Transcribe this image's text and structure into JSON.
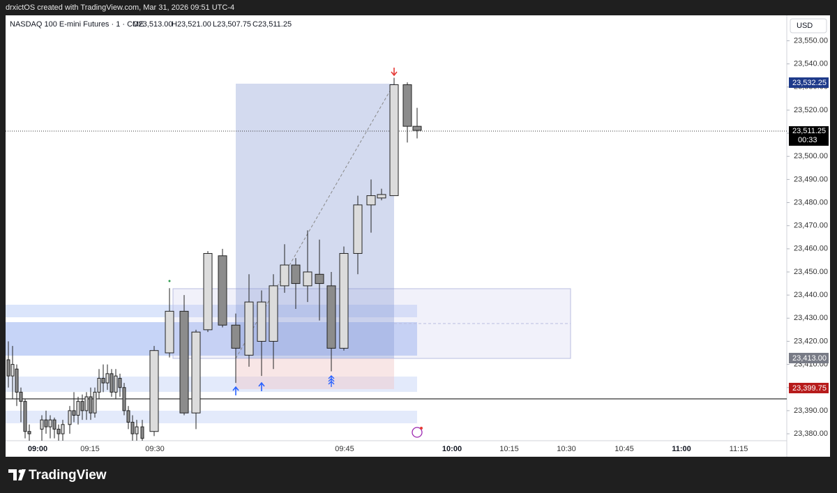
{
  "header": {
    "text": "drxictOS created with TradingView.com, Mar 31, 2026 09:51 UTC-4"
  },
  "legend": {
    "symbol": "NASDAQ 100 E-mini Futures · 1 · CME",
    "open": "O23,513.00",
    "high": "H23,521.00",
    "low": "L23,507.75",
    "close": "C23,511.25"
  },
  "currency": "USD",
  "price_labels": {
    "upper": "23,532.25",
    "last": "23,511.25",
    "countdown": "00:33",
    "mid": "23,413.00",
    "lower": "23,399.75"
  },
  "footer": {
    "brand": "TradingView"
  },
  "chart_data": {
    "type": "candlestick",
    "categories": [
      null,
      null,
      null,
      null,
      null,
      null,
      null,
      null,
      null,
      null,
      null,
      null,
      null,
      null,
      null,
      null,
      null,
      null,
      null,
      null,
      null,
      null,
      null,
      null,
      null,
      null,
      null,
      null,
      null,
      null,
      null,
      null,
      null,
      null,
      null,
      null,
      null,
      null,
      null,
      null,
      null,
      null,
      null,
      null,
      null,
      null,
      null,
      null,
      null,
      null,
      null,
      null
    ],
    "open": [
      23412,
      23405,
      23408,
      23398,
      23394,
      23381,
      23382,
      23386,
      23383,
      23386,
      23382,
      23380,
      23384,
      23390,
      23388,
      23394,
      23390,
      23396,
      23389,
      23398,
      23404,
      23402,
      23406,
      23398,
      23404,
      23400,
      23390,
      23385,
      23380,
      23383,
      23381,
      23415,
      23433,
      23389,
      23425,
      23457,
      23427,
      23414,
      23420,
      23420,
      23444,
      23453,
      23444,
      23449,
      23444,
      23417,
      23458,
      23479,
      23482,
      23483,
      23531,
      23513
    ],
    "high": [
      23420,
      23418,
      23410,
      23400,
      23395,
      23384,
      23388,
      23390,
      23388,
      23387,
      23384,
      23386,
      23392,
      23398,
      23396,
      23397,
      23398,
      23400,
      23400,
      23408,
      23410,
      23410,
      23408,
      23408,
      23406,
      23402,
      23392,
      23388,
      23386,
      23386,
      23418,
      23443,
      23440,
      23425,
      23459,
      23460,
      23432,
      23449,
      23442,
      23449,
      23462,
      23456,
      23468,
      23464,
      23450,
      23461,
      23483,
      23490,
      23486,
      23534,
      23532,
      23521
    ],
    "low": [
      23400,
      23395,
      23392,
      23385,
      23378,
      23376,
      23377,
      23380,
      23378,
      23378,
      23375,
      23376,
      23380,
      23385,
      23384,
      23386,
      23386,
      23386,
      23387,
      23395,
      23398,
      23399,
      23396,
      23395,
      23396,
      23388,
      23382,
      23377,
      23376,
      23376,
      23379,
      23413,
      23388,
      23382,
      23424,
      23426,
      23402,
      23409,
      23405,
      23408,
      23441,
      23434,
      23437,
      23429,
      23407,
      23416,
      23449,
      23467,
      23481,
      23483,
      23506,
      23507.75
    ],
    "close": [
      23405,
      23410,
      23398,
      23394,
      23381,
      23380,
      23386,
      23383,
      23386,
      23382,
      23380,
      23384,
      23390,
      23388,
      23394,
      23390,
      23396,
      23389,
      23398,
      23404,
      23402,
      23406,
      23398,
      23405,
      23400,
      23390,
      23385,
      23380,
      23383,
      23378,
      23416,
      23433,
      23389,
      23424,
      23458,
      23427,
      23417,
      23437,
      23437,
      23444,
      23453,
      23445,
      23450,
      23445,
      23417,
      23458,
      23479,
      23483,
      23483.5,
      23531,
      23513,
      23511.25
    ],
    "up_color": "#dcdcdc",
    "down_color": "#8c8c8c",
    "ylim": [
      23377,
      23561
    ],
    "yticks": [
      {
        "value": 23380,
        "label": "23,380.00"
      },
      {
        "value": 23390,
        "label": "23,390.00"
      },
      {
        "value": 23400,
        "label": "23,400.00"
      },
      {
        "value": 23410,
        "label": "23,410.00"
      },
      {
        "value": 23420,
        "label": "23,420.00"
      },
      {
        "value": 23430,
        "label": "23,430.00"
      },
      {
        "value": 23440,
        "label": "23,440.00"
      },
      {
        "value": 23450,
        "label": "23,450.00"
      },
      {
        "value": 23460,
        "label": "23,460.00"
      },
      {
        "value": 23470,
        "label": "23,470.00"
      },
      {
        "value": 23480,
        "label": "23,480.00"
      },
      {
        "value": 23490,
        "label": "23,490.00"
      },
      {
        "value": 23500,
        "label": "23,500.00"
      },
      {
        "value": 23510,
        "label": "23,510.00"
      },
      {
        "value": 23520,
        "label": "23,520.00"
      },
      {
        "value": 23530,
        "label": "23,530.00"
      },
      {
        "value": 23540,
        "label": "23,540.00"
      },
      {
        "value": 23550,
        "label": "23,550.00"
      }
    ],
    "xlabels": [
      "09:00",
      "09:15",
      "09:30",
      "09:45",
      "10:00",
      "10:15",
      "10:30",
      "10:45",
      "11:00",
      "11:15"
    ]
  }
}
